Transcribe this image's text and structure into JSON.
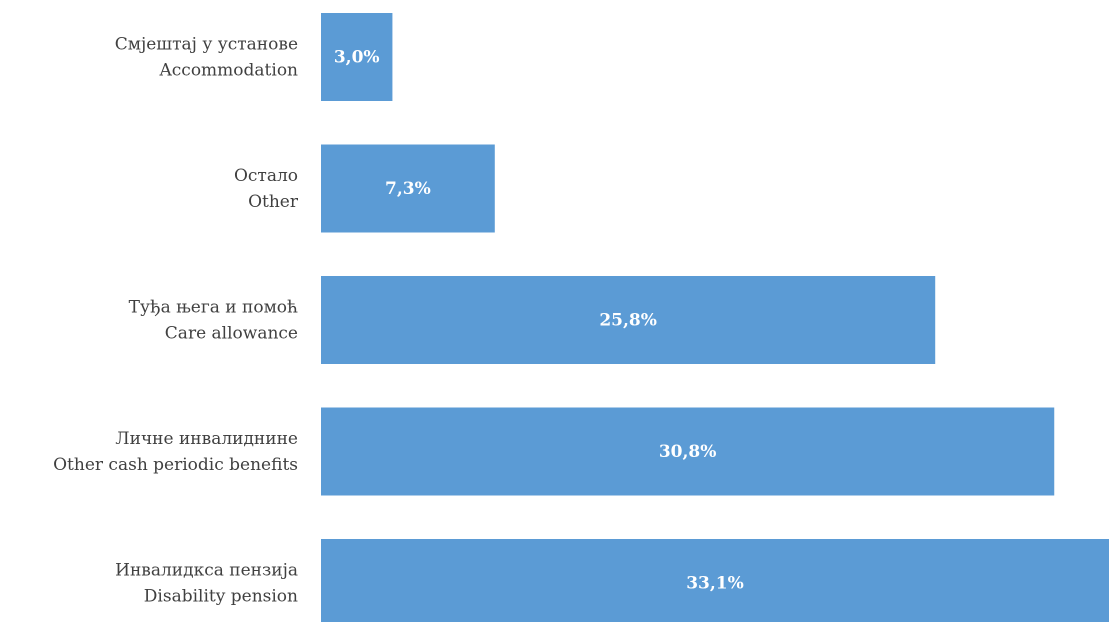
{
  "chart_data": {
    "type": "bar",
    "orientation": "horizontal",
    "categories": [
      [
        "Смјештај у установе",
        "Accommodation"
      ],
      [
        "Остало",
        "Other"
      ],
      [
        "Туђа њега и помоћ",
        "Care allowance"
      ],
      [
        "Личне инвалиднине",
        "Other cash periodic benefits"
      ],
      [
        "Инвалидкса пензија",
        "Disability pension"
      ]
    ],
    "values": [
      3.0,
      7.3,
      25.8,
      30.8,
      33.1
    ],
    "value_labels": [
      "3,0%",
      "7,3%",
      "25,8%",
      "30,8%",
      "33,1%"
    ],
    "color": "#5b9bd5"
  }
}
